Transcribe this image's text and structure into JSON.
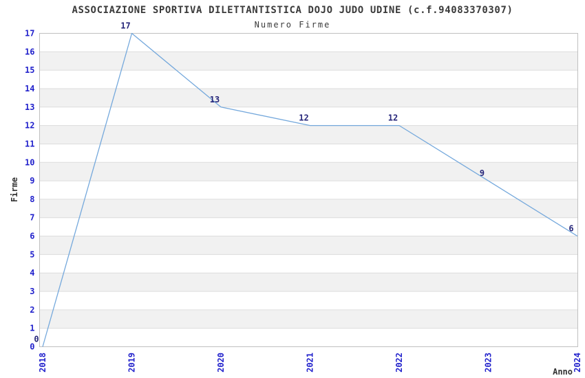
{
  "title": "ASSOCIAZIONE SPORTIVA DILETTANTISTICA DOJO JUDO UDINE (c.f.94083370307)",
  "subtitle": "Numero Firme",
  "chart_data": {
    "type": "line",
    "title": "ASSOCIAZIONE SPORTIVA DILETTANTISTICA DOJO JUDO UDINE (c.f.94083370307)",
    "subtitle": "Numero Firme",
    "xlabel": "Anno",
    "ylabel": "Firme",
    "x": [
      2018,
      2019,
      2020,
      2021,
      2022,
      2023,
      2024
    ],
    "values": [
      0,
      17,
      13,
      12,
      12,
      9,
      6
    ],
    "ylim": [
      0,
      17
    ],
    "ytick_step": 1,
    "yticks": [
      0,
      1,
      2,
      3,
      4,
      5,
      6,
      7,
      8,
      9,
      10,
      11,
      12,
      13,
      14,
      15,
      16,
      17
    ],
    "grid": "horizontal",
    "value_labels_shown": true,
    "legend_position": "none",
    "colors": {
      "line": "#74A8DC",
      "tick_label": "#2222CC",
      "value_label": "#26267A",
      "grid_line": "#DCDCDC",
      "plot_border": "#C0C0C0",
      "band_gray": "#F1F1F1",
      "band_white": "#FFFFFF",
      "title_text": "#3A3A3A",
      "axis_title_text": "#333333",
      "background": "#FFFFFF"
    }
  }
}
